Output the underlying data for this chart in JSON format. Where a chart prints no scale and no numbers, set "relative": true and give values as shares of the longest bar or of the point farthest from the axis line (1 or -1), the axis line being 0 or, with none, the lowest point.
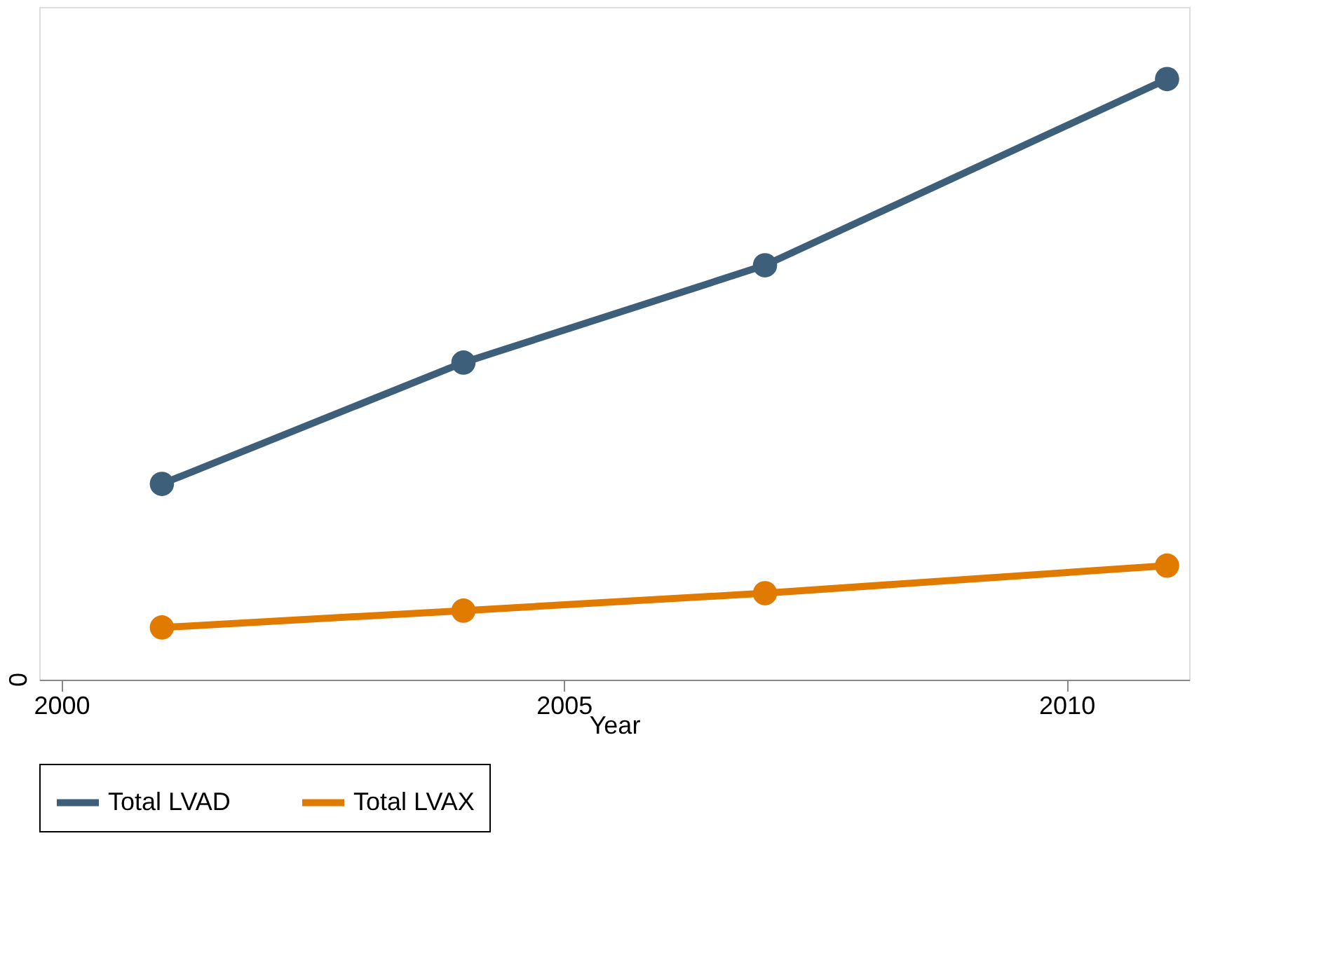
{
  "chart_data": {
    "type": "line",
    "xlabel": "Year",
    "x": [
      2001,
      2004,
      2007,
      2011
    ],
    "xlim": [
      1999.78,
      2011.22
    ],
    "xticks": [
      2000,
      2005,
      2010
    ],
    "relative": true,
    "series": [
      {
        "name": "Total LVAD",
        "color": "#3e5f7a",
        "values": [
          0.326,
          0.528,
          0.69,
          1
        ]
      },
      {
        "name": "Total LVAX",
        "color": "#e07b00",
        "values": [
          0.087,
          0.115,
          0.144,
          0.19
        ]
      }
    ],
    "annotations": [
      "0"
    ],
    "marker": "circle",
    "line_style": "solid",
    "legend": "bottom"
  }
}
